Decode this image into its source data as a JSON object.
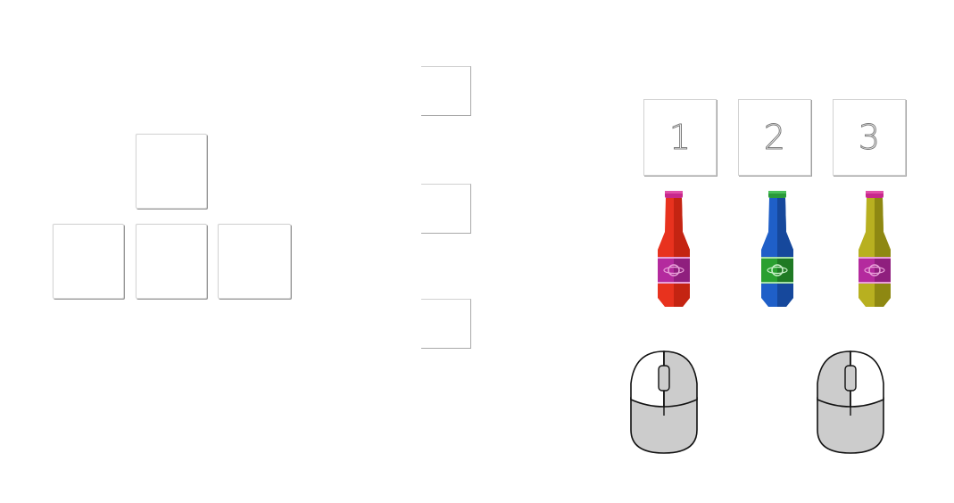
{
  "arrow_keys": {
    "up": {
      "label": ""
    },
    "left": {
      "label": ""
    },
    "down": {
      "label": ""
    },
    "right": {
      "label": ""
    }
  },
  "side_keys": [
    {
      "label": ""
    },
    {
      "label": ""
    },
    {
      "label": ""
    }
  ],
  "number_keys": [
    {
      "label": "1"
    },
    {
      "label": "2"
    },
    {
      "label": "3"
    }
  ],
  "bottles": [
    {
      "name": "red-bottle",
      "body_color": "#e8321e",
      "cap_color": "#c8288c",
      "label_color": "#b42a9e"
    },
    {
      "name": "blue-bottle",
      "body_color": "#1f5fc8",
      "cap_color": "#2a9a3a",
      "label_color": "#2aa030"
    },
    {
      "name": "yellow-bottle",
      "body_color": "#b8b020",
      "cap_color": "#c8288c",
      "label_color": "#b42a9e"
    }
  ],
  "mice": [
    {
      "name": "mouse-left-click",
      "highlight": "left"
    },
    {
      "name": "mouse-right-click",
      "highlight": "right"
    }
  ]
}
